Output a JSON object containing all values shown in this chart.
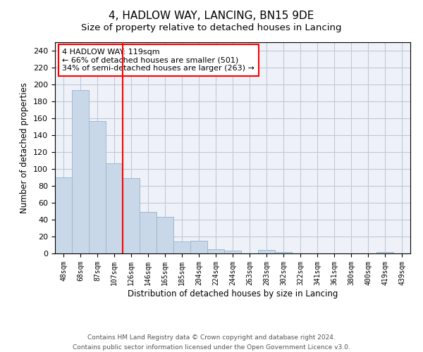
{
  "title": "4, HADLOW WAY, LANCING, BN15 9DE",
  "subtitle": "Size of property relative to detached houses in Lancing",
  "xlabel": "Distribution of detached houses by size in Lancing",
  "ylabel": "Number of detached properties",
  "bar_labels": [
    "48sqm",
    "68sqm",
    "87sqm",
    "107sqm",
    "126sqm",
    "146sqm",
    "165sqm",
    "185sqm",
    "204sqm",
    "224sqm",
    "244sqm",
    "263sqm",
    "283sqm",
    "302sqm",
    "322sqm",
    "341sqm",
    "361sqm",
    "380sqm",
    "400sqm",
    "419sqm",
    "439sqm"
  ],
  "bar_values": [
    90,
    193,
    157,
    107,
    89,
    49,
    43,
    14,
    15,
    5,
    3,
    0,
    4,
    2,
    0,
    0,
    0,
    0,
    0,
    2,
    0
  ],
  "bar_color": "#c8d8e8",
  "bar_edgecolor": "#a0b8d0",
  "grid_color": "#c0c8d8",
  "background_color": "#eef2f8",
  "red_line_x": 3.5,
  "annotation_text": "4 HADLOW WAY: 119sqm\n← 66% of detached houses are smaller (501)\n34% of semi-detached houses are larger (263) →",
  "annotation_box_edgecolor": "red",
  "footnote": "Contains HM Land Registry data © Crown copyright and database right 2024.\nContains public sector information licensed under the Open Government Licence v3.0.",
  "ylim": [
    0,
    250
  ],
  "yticks": [
    0,
    20,
    40,
    60,
    80,
    100,
    120,
    140,
    160,
    180,
    200,
    220,
    240
  ],
  "title_fontsize": 11,
  "subtitle_fontsize": 9.5,
  "ylabel_fontsize": 8.5,
  "xlabel_fontsize": 8.5,
  "annotation_fontsize": 8,
  "footnote_fontsize": 6.5,
  "tick_fontsize": 8,
  "xtick_fontsize": 7
}
